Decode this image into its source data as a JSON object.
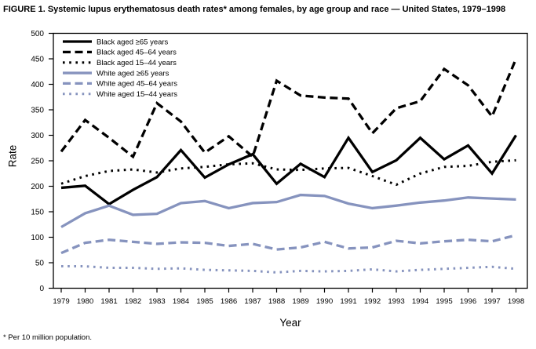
{
  "title": "FIGURE 1. Systemic lupus erythematosus death rates* among females, by age group and race — United States, 1979–1998",
  "footnote": "* Per 10 million population.",
  "colors": {
    "black_series": "#000000",
    "white_series": "#8693BE",
    "axis": "#000000",
    "background": "#ffffff"
  },
  "chart_data": {
    "type": "line",
    "title": "Systemic lupus erythematosus death rates among females, by age group and race, United States, 1979–1998",
    "xlabel": "Year",
    "ylabel": "Rate",
    "ylim": [
      0,
      500
    ],
    "ytick_step": 50,
    "grid": false,
    "legend_position": "top-left-inside",
    "x": [
      1979,
      1980,
      1981,
      1982,
      1983,
      1984,
      1985,
      1986,
      1987,
      1988,
      1989,
      1990,
      1991,
      1992,
      1993,
      1994,
      1995,
      1996,
      1997,
      1998
    ],
    "series": [
      {
        "name": "Black aged ≥65 years",
        "color": "#000000",
        "dash": "solid",
        "values": [
          197,
          201,
          165,
          193,
          218,
          271,
          217,
          243,
          263,
          205,
          244,
          218,
          295,
          228,
          251,
          295,
          253,
          280,
          225,
          300
        ]
      },
      {
        "name": "Black aged 45–64 years",
        "color": "#000000",
        "dash": "dashed",
        "values": [
          268,
          330,
          295,
          258,
          363,
          327,
          266,
          298,
          258,
          407,
          378,
          374,
          372,
          304,
          353,
          367,
          430,
          398,
          337,
          450
        ]
      },
      {
        "name": "Black aged 15–44 years",
        "color": "#000000",
        "dash": "dotted",
        "values": [
          205,
          220,
          230,
          233,
          227,
          235,
          238,
          243,
          245,
          233,
          232,
          235,
          236,
          220,
          203,
          225,
          238,
          240,
          248,
          251
        ]
      },
      {
        "name": "White aged ≥65 years",
        "color": "#8693BE",
        "dash": "solid",
        "values": [
          120,
          147,
          162,
          144,
          146,
          167,
          171,
          157,
          167,
          169,
          183,
          181,
          166,
          157,
          162,
          168,
          172,
          178,
          176,
          174
        ]
      },
      {
        "name": "White aged 45–64 years",
        "color": "#8693BE",
        "dash": "dashed",
        "values": [
          69,
          89,
          95,
          91,
          87,
          90,
          89,
          83,
          87,
          76,
          80,
          91,
          78,
          80,
          93,
          88,
          92,
          95,
          92,
          104
        ]
      },
      {
        "name": "White aged 15–44 years",
        "color": "#8693BE",
        "dash": "dotted",
        "values": [
          43,
          43,
          40,
          40,
          38,
          39,
          36,
          35,
          34,
          31,
          34,
          33,
          34,
          37,
          33,
          36,
          38,
          40,
          42,
          38
        ]
      }
    ]
  }
}
